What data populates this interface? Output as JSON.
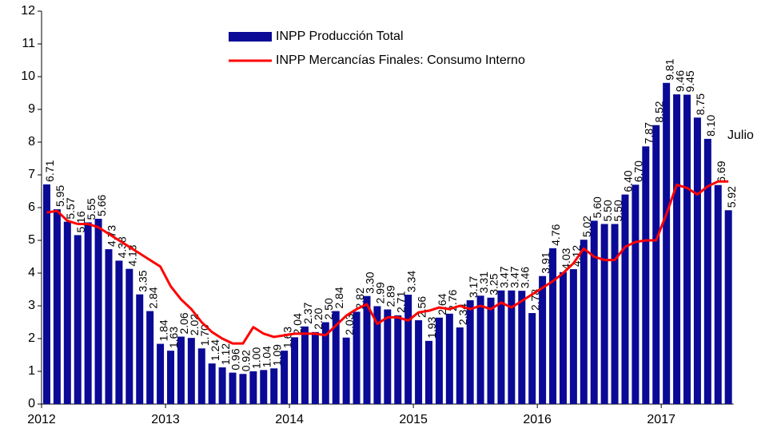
{
  "chart_data": {
    "type": "bar",
    "categories": [
      "2012",
      null,
      null,
      null,
      null,
      null,
      null,
      null,
      null,
      null,
      null,
      null,
      "2013",
      null,
      null,
      null,
      null,
      null,
      null,
      null,
      null,
      null,
      null,
      null,
      "2014",
      null,
      null,
      null,
      null,
      null,
      null,
      null,
      null,
      null,
      null,
      null,
      "2015",
      null,
      null,
      null,
      null,
      null,
      null,
      null,
      null,
      null,
      null,
      null,
      "2016",
      null,
      null,
      null,
      null,
      null,
      null,
      null,
      null,
      null,
      null,
      null,
      "2017",
      null,
      null,
      null,
      null,
      null,
      null
    ],
    "series": [
      {
        "name": "INPP Producción Total",
        "color": "#0a0a96",
        "values": [
          6.71,
          5.95,
          5.57,
          5.16,
          5.55,
          5.66,
          4.73,
          4.38,
          4.13,
          3.35,
          2.84,
          1.84,
          1.63,
          2.06,
          2.02,
          1.7,
          1.24,
          1.12,
          0.96,
          0.92,
          1.0,
          1.04,
          1.09,
          1.63,
          2.04,
          2.37,
          2.2,
          2.5,
          2.84,
          2.03,
          2.82,
          3.3,
          2.99,
          2.89,
          2.71,
          3.34,
          2.56,
          1.93,
          2.64,
          2.76,
          2.34,
          3.17,
          3.31,
          3.25,
          3.47,
          3.47,
          3.46,
          2.78,
          3.91,
          4.76,
          4.03,
          4.12,
          5.02,
          5.6,
          5.5,
          5.5,
          6.4,
          6.7,
          7.87,
          8.52,
          9.81,
          9.46,
          9.45,
          8.75,
          8.1,
          6.69,
          5.92
        ],
        "value_labels": [
          "6.71",
          "5.95",
          "5.57",
          "5.16",
          "5.55",
          "5.66",
          "4.73",
          "4.38",
          "4.13",
          "3.35",
          "2.84",
          "1.84",
          "1.63",
          "2.06",
          "2.02",
          "1.70",
          "1.24",
          "1.12",
          "0.96",
          "0.92",
          "1.00",
          "1.04",
          "1.09",
          "1.63",
          "2.04",
          "2.37",
          "2.20",
          "2.50",
          "2.84",
          "2.03",
          "2.82",
          "3.30",
          "2.99",
          "2.89",
          "2.71",
          "3.34",
          "2.56",
          "1.93",
          "2.64",
          "2.76",
          "2.34",
          "3.17",
          "3.31",
          "3.25",
          "3.47",
          "3.47",
          "3.46",
          "2.78",
          "3.91",
          "4.76",
          "4.03",
          "4.12",
          "5.02",
          "5.60",
          "5.50",
          "5.50",
          "6.40",
          "6.70",
          "7.87",
          "8.52",
          "9.81",
          "9.46",
          "9.45",
          "8.75",
          "8.10",
          "6.69",
          "5.92"
        ]
      },
      {
        "name": "INPP Mercancías Finales: Consumo Interno",
        "color": "#ff0000",
        "type": "line",
        "values": [
          5.85,
          5.9,
          5.6,
          5.5,
          5.5,
          5.4,
          5.2,
          5.0,
          4.8,
          4.6,
          4.4,
          4.2,
          3.6,
          3.2,
          2.9,
          2.5,
          2.2,
          2.0,
          1.85,
          1.85,
          2.35,
          2.15,
          2.05,
          2.1,
          2.15,
          2.15,
          2.15,
          2.1,
          2.4,
          2.7,
          2.9,
          3.05,
          2.45,
          2.65,
          2.65,
          2.55,
          2.8,
          2.85,
          2.95,
          2.9,
          3.0,
          2.9,
          3.0,
          2.9,
          3.1,
          2.95,
          3.15,
          3.35,
          3.55,
          3.75,
          4.0,
          4.3,
          4.75,
          4.5,
          4.4,
          4.4,
          4.8,
          4.95,
          5.0,
          5.0,
          5.8,
          6.7,
          6.6,
          6.4,
          6.65,
          6.8,
          6.8
        ]
      }
    ],
    "ylim": [
      0,
      12
    ],
    "yticks": [
      0,
      1,
      2,
      3,
      4,
      5,
      6,
      7,
      8,
      9,
      10,
      11,
      12
    ],
    "annotation": "Julio"
  }
}
